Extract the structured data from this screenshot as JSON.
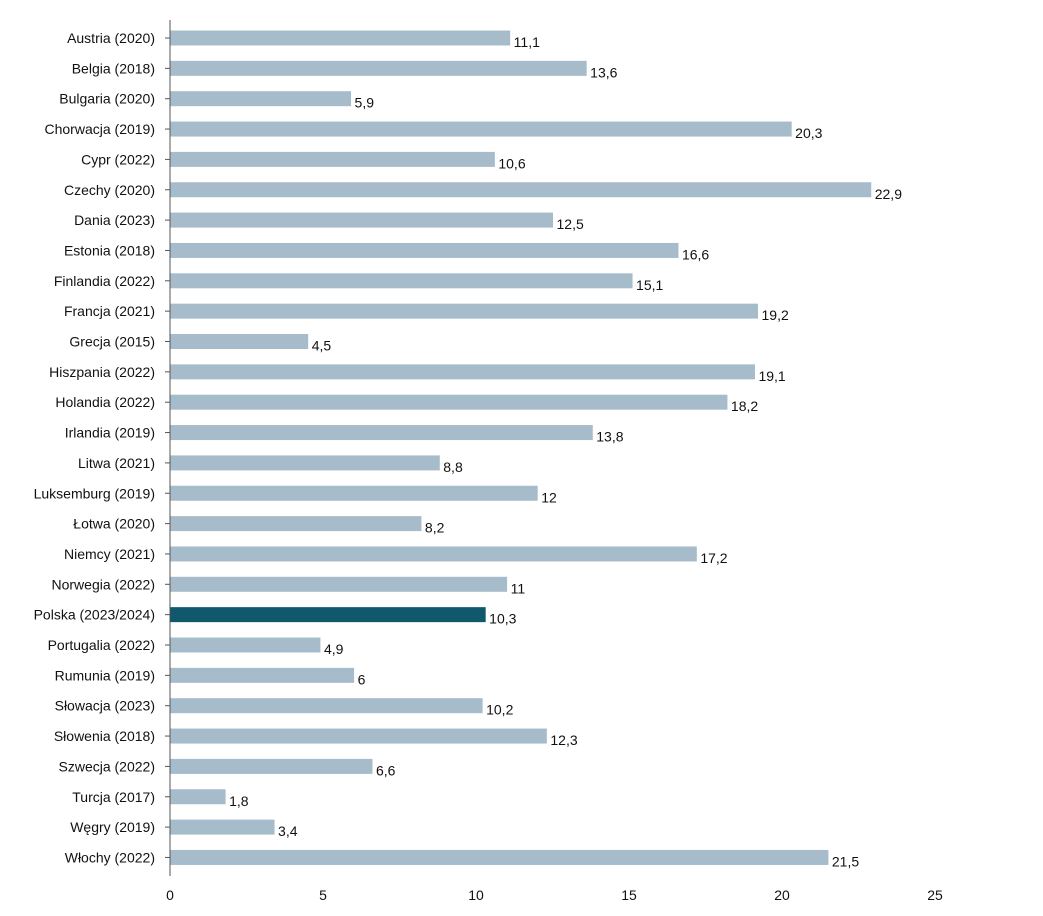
{
  "chart_data": {
    "type": "bar",
    "orientation": "horizontal",
    "categories": [
      "Austria (2020)",
      "Belgia (2018)",
      "Bulgaria (2020)",
      "Chorwacja (2019)",
      "Cypr (2022)",
      "Czechy (2020)",
      "Dania (2023)",
      "Estonia (2018)",
      "Finlandia (2022)",
      "Francja (2021)",
      "Grecja (2015)",
      "Hiszpania (2022)",
      "Holandia (2022)",
      "Irlandia (2019)",
      "Litwa (2021)",
      "Luksemburg (2019)",
      "Łotwa (2020)",
      "Niemcy (2021)",
      "Norwegia (2022)",
      "Polska (2023/2024)",
      "Portugalia (2022)",
      "Rumunia (2019)",
      "Słowacja (2023)",
      "Słowenia (2018)",
      "Szwecja (2022)",
      "Turcja (2017)",
      "Węgry (2019)",
      "Włochy (2022)"
    ],
    "values": [
      11.1,
      13.6,
      5.9,
      20.3,
      10.6,
      22.9,
      12.5,
      16.6,
      15.1,
      19.2,
      4.5,
      19.1,
      18.2,
      13.8,
      8.8,
      12,
      8.2,
      17.2,
      11,
      10.3,
      4.9,
      6,
      10.2,
      12.3,
      6.6,
      1.8,
      3.4,
      21.5
    ],
    "value_labels": [
      "11,1",
      "13,6",
      "5,9",
      "20,3",
      "10,6",
      "22,9",
      "12,5",
      "16,6",
      "15,1",
      "19,2",
      "4,5",
      "19,1",
      "18,2",
      "13,8",
      "8,8",
      "12",
      "8,2",
      "17,2",
      "11",
      "10,3",
      "4,9",
      "6",
      "10,2",
      "12,3",
      "6,6",
      "1,8",
      "3,4",
      "21,5"
    ],
    "xlim": [
      0,
      25
    ],
    "xticks": [
      0,
      5,
      10,
      15,
      20,
      25
    ],
    "xtick_labels": [
      "0",
      "5",
      "10",
      "15",
      "20",
      "25"
    ],
    "highlight_index": 19,
    "colors": {
      "bar": "#a7bccb",
      "highlight": "#10586b",
      "axis": "#555555"
    },
    "grid": false,
    "legend": "none",
    "title": "",
    "xlabel": "",
    "ylabel": ""
  }
}
